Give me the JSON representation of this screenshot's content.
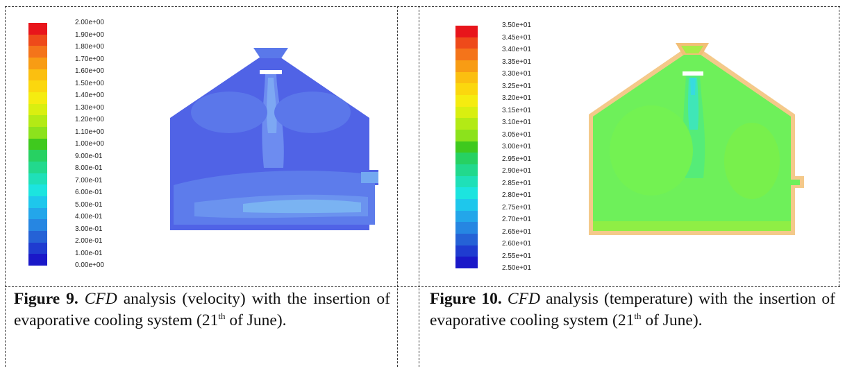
{
  "left_panel": {
    "colorbar_labels": [
      "2.00e+00",
      "1.90e+00",
      "1.80e+00",
      "1.70e+00",
      "1.60e+00",
      "1.50e+00",
      "1.40e+00",
      "1.30e+00",
      "1.20e+00",
      "1.10e+00",
      "1.00e+00",
      "9.00e-01",
      "8.00e-01",
      "7.00e-01",
      "6.00e-01",
      "5.00e-01",
      "4.00e-01",
      "3.00e-01",
      "2.00e-01",
      "1.00e-01",
      "0.00e+00"
    ],
    "caption": {
      "figure_label": "Figure 9.",
      "cfd": "CFD",
      "text": "analysis (velocity) with the insertion of evaporative cooling system (21",
      "sup": "th",
      "tail": "of June)."
    }
  },
  "right_panel": {
    "colorbar_labels": [
      "3.50e+01",
      "3.45e+01",
      "3.40e+01",
      "3.35e+01",
      "3.30e+01",
      "3.25e+01",
      "3.20e+01",
      "3.15e+01",
      "3.10e+01",
      "3.05e+01",
      "3.00e+01",
      "2.95e+01",
      "2.90e+01",
      "2.85e+01",
      "2.80e+01",
      "2.75e+01",
      "2.70e+01",
      "2.65e+01",
      "2.60e+01",
      "2.55e+01",
      "2.50e+01"
    ],
    "caption": {
      "figure_label": "Figure 10.",
      "cfd": "CFD",
      "text": "analysis (temperature) with the insertion of evaporative cooling system (21",
      "sup": "th",
      "tail": "of June)."
    }
  },
  "colors": {
    "bands": [
      "#e8151b",
      "#ee4a1a",
      "#f4741a",
      "#f89c14",
      "#fbbf10",
      "#fbd70e",
      "#f5ec10",
      "#d9ef10",
      "#b3ea15",
      "#8ce21c",
      "#3fc91e",
      "#27d162",
      "#22d98d",
      "#1fe0b8",
      "#1ce4df",
      "#1ec7ec",
      "#23a6ea",
      "#2686e2",
      "#2562d6",
      "#1f3cd0",
      "#1a18c8"
    ],
    "velocity_field": "#5063e6",
    "temperature_field": "#6ef05a"
  }
}
